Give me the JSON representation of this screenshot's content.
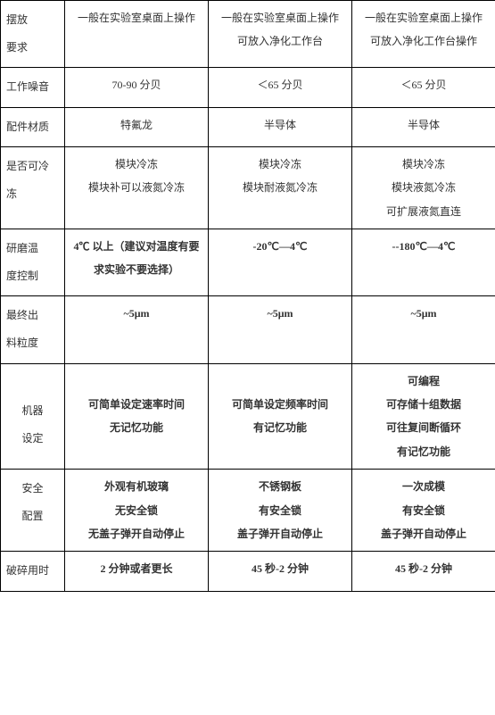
{
  "rows": [
    {
      "label_lines": [
        "摆放",
        "要求"
      ],
      "c1_lines": [
        "一般在实验室桌面上操作"
      ],
      "c2_lines": [
        "一般在实验室桌面上操作",
        "可放入净化工作台"
      ],
      "c3_lines": [
        "一般在实验室桌面上操作",
        "可放入净化工作台操作"
      ]
    },
    {
      "label_lines": [
        "工作噪音"
      ],
      "c1_lines": [
        "70-90 分贝"
      ],
      "c2_lines": [
        "＜65 分贝"
      ],
      "c3_lines": [
        "＜65 分贝"
      ]
    },
    {
      "label_lines": [
        "配件材质"
      ],
      "c1_lines": [
        "特氟龙"
      ],
      "c2_lines": [
        "半导体"
      ],
      "c3_lines": [
        "半导体"
      ]
    },
    {
      "label_lines": [
        "是否可冷",
        "冻"
      ],
      "c1_lines": [
        "模块冷冻",
        "模块补可以液氮冷冻"
      ],
      "c2_lines": [
        "模块冷冻",
        "模块耐液氮冷冻"
      ],
      "c3_lines": [
        "模块冷冻",
        "模块液氮冷冻",
        "可扩展液氮直连"
      ]
    },
    {
      "label_lines": [
        "研磨温",
        "度控制"
      ],
      "c1_bold": true,
      "c2_bold": true,
      "c3_bold": true,
      "c1_lines": [
        "4℃ 以上（建议对温度有要求实验不要选择）"
      ],
      "c2_lines": [
        "-20℃—4℃"
      ],
      "c3_lines": [
        "--180℃—4℃"
      ]
    },
    {
      "label_lines": [
        "最终出",
        "料粒度"
      ],
      "c1_bold": true,
      "c2_bold": true,
      "c3_bold": true,
      "c1_lines": [
        "~5μm"
      ],
      "c2_lines": [
        "~5μm"
      ],
      "c3_lines": [
        "~5μm"
      ]
    },
    {
      "label_lines": [
        "",
        "机器",
        "设定"
      ],
      "label_center": true,
      "c1_bold": true,
      "c2_bold": true,
      "c3_bold": true,
      "c1_lines": [
        " ",
        "可简单设定速率时间",
        "无记忆功能"
      ],
      "c2_lines": [
        " ",
        "可简单设定频率时间",
        "有记忆功能"
      ],
      "c3_lines": [
        "可编程",
        "可存储十组数据",
        "可往复间断循环",
        "有记忆功能"
      ]
    },
    {
      "label_lines": [
        "安全",
        "配置"
      ],
      "label_center": true,
      "c1_bold": true,
      "c2_bold": true,
      "c3_bold": true,
      "c1_lines": [
        "外观有机玻璃",
        "无安全锁",
        "无盖子弹开自动停止"
      ],
      "c2_lines": [
        "不锈钢板",
        "有安全锁",
        "盖子弹开自动停止"
      ],
      "c3_lines": [
        "一次成模",
        "有安全锁",
        "盖子弹开自动停止"
      ]
    },
    {
      "label_lines": [
        "破碎用时"
      ],
      "c1_bold": true,
      "c2_bold": true,
      "c3_bold": true,
      "c1_lines": [
        "2 分钟或者更长"
      ],
      "c2_lines": [
        "45 秒-2 分钟"
      ],
      "c3_lines": [
        "45 秒-2 分钟"
      ]
    }
  ]
}
